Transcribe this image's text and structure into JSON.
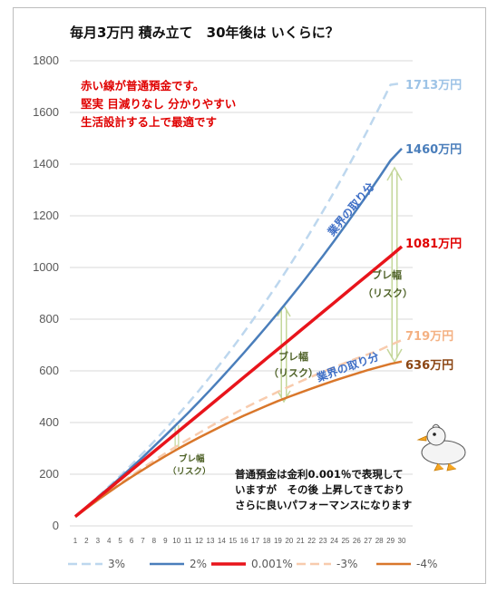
{
  "chart_data": {
    "type": "line",
    "title": "毎月3万円 積み立て　30年後は いくらに？",
    "ylim": [
      0,
      1800
    ],
    "yticks": [
      "0",
      "200",
      "400",
      "600",
      "800",
      "1000",
      "1200",
      "1400",
      "1600",
      "1800"
    ],
    "x": [
      1,
      2,
      3,
      4,
      5,
      6,
      7,
      8,
      9,
      10,
      11,
      12,
      13,
      14,
      15,
      16,
      17,
      18,
      19,
      20,
      21,
      22,
      23,
      24,
      25,
      26,
      27,
      28,
      29,
      30
    ],
    "series": [
      {
        "name": "3%",
        "color": "#bdd7ee",
        "dash": true,
        "end_label": "1713万円",
        "values": [
          37,
          74,
          113,
          153,
          194,
          237,
          281,
          327,
          374,
          423,
          473,
          525,
          579,
          634,
          691,
          750,
          811,
          874,
          938,
          1005,
          1074,
          1145,
          1218,
          1293,
          1371,
          1451,
          1534,
          1619,
          1707,
          1713
        ]
      },
      {
        "name": "2%",
        "color": "#4a7ebb",
        "dash": false,
        "end_label": "1460万円",
        "values": [
          36,
          73,
          110,
          148,
          187,
          226,
          266,
          308,
          350,
          393,
          436,
          481,
          527,
          574,
          622,
          671,
          721,
          772,
          824,
          878,
          932,
          988,
          1045,
          1103,
          1163,
          1224,
          1286,
          1349,
          1414,
          1460
        ]
      },
      {
        "name": "0.001%",
        "color": "#e8141b",
        "dash": false,
        "end_label": "1081万円",
        "values": [
          36,
          72,
          108,
          144,
          180,
          216,
          252,
          288,
          324,
          360,
          396,
          432,
          468,
          504,
          540,
          576,
          612,
          648,
          684,
          720,
          756,
          792,
          828,
          864,
          900,
          936,
          972,
          1008,
          1044,
          1081
        ]
      },
      {
        "name": "-3%",
        "color": "#f8cbad",
        "dash": true,
        "end_label": "719万円",
        "values": [
          35,
          69,
          102,
          134,
          165,
          195,
          225,
          253,
          281,
          308,
          334,
          360,
          385,
          409,
          432,
          455,
          477,
          498,
          519,
          539,
          559,
          578,
          596,
          614,
          631,
          648,
          664,
          680,
          700,
          719
        ]
      },
      {
        "name": "-4%",
        "color": "#d9772b",
        "dash": false,
        "end_label": "636万円",
        "values": [
          35,
          68,
          100,
          131,
          161,
          190,
          217,
          244,
          270,
          295,
          319,
          342,
          364,
          386,
          407,
          427,
          446,
          465,
          483,
          500,
          516,
          532,
          547,
          562,
          576,
          590,
          603,
          615,
          627,
          636
        ]
      }
    ],
    "annotations": {
      "red_note": [
        "赤い線が普通預金です。",
        "堅実 目減りなし 分かりやすい",
        "生活設計する上で最適です"
      ],
      "black_note": [
        "普通預金は金利0.001％で表現して",
        "いますが　その後 上昇してきており",
        "さらに良いパフォーマンスになります"
      ],
      "risk_30": [
        "ブレ幅",
        "（リスク）"
      ],
      "risk_20": [
        "ブレ幅",
        "（リスク）"
      ],
      "risk_10": [
        "ブレ幅",
        "（リスク）"
      ],
      "diag_upper": "業界の取り分",
      "diag_lower": "業界の取り分"
    }
  }
}
